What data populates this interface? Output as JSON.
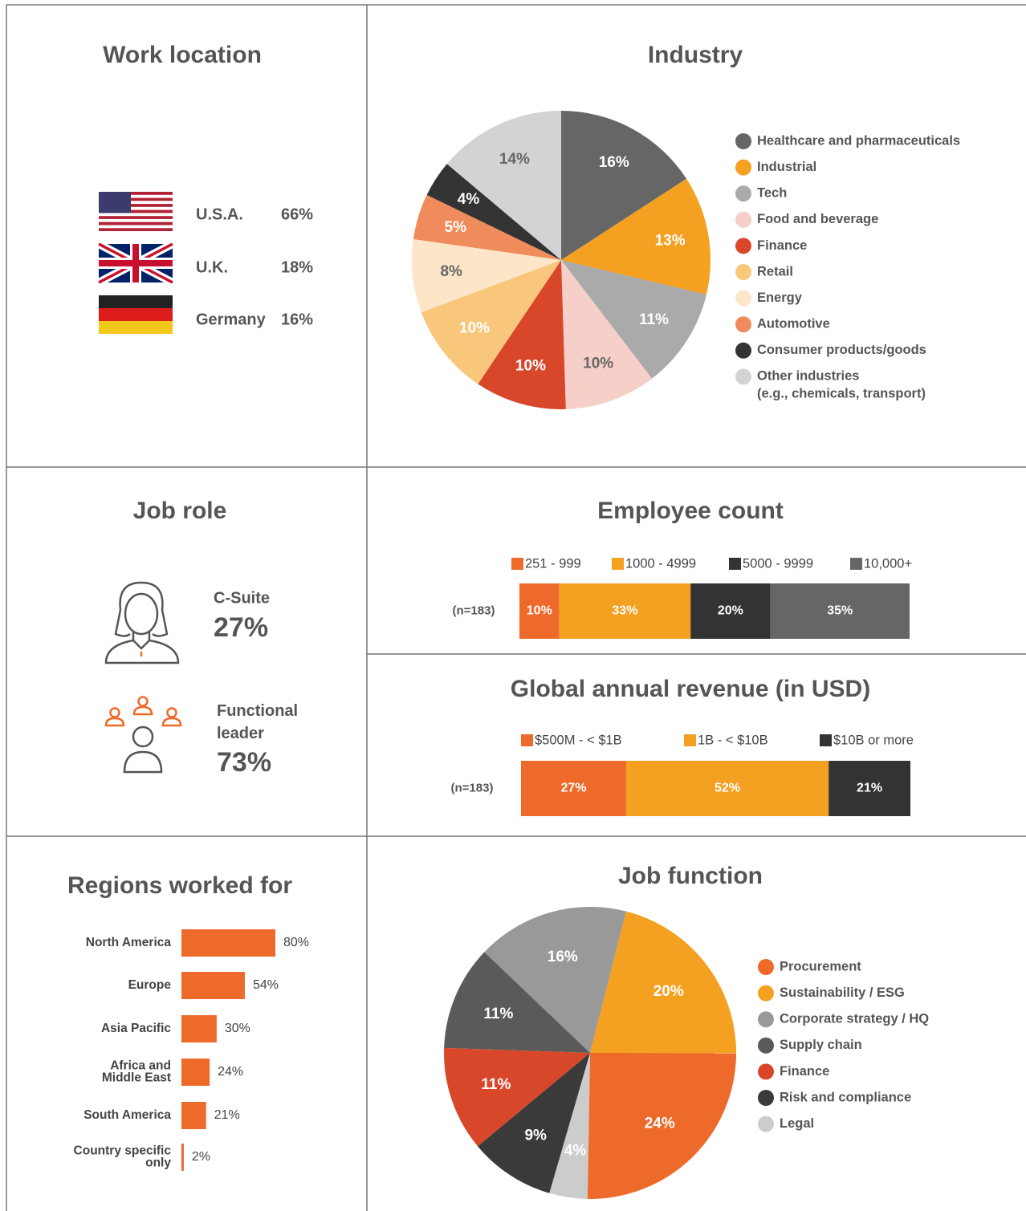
{
  "chart_data": [
    {
      "type": "stat",
      "title": "Work location",
      "categories": [
        "U.S.A.",
        "U.K.",
        "Germany"
      ],
      "values": [
        66,
        18,
        16
      ],
      "value_labels": [
        "66%",
        "18%",
        "16%"
      ]
    },
    {
      "type": "pie",
      "title": "Industry",
      "categories": [
        "Healthcare and pharmaceuticals",
        "Industrial",
        "Tech",
        "Food and beverage",
        "Finance",
        "Retail",
        "Energy",
        "Automotive",
        "Consumer products/goods",
        "Other industries\n(e.g., chemicals, transport)"
      ],
      "values": [
        16,
        13,
        11,
        10,
        10,
        10,
        8,
        5,
        4,
        14
      ],
      "value_labels": [
        "16%",
        "13%",
        "11%",
        "10%",
        "10%",
        "10%",
        "8%",
        "5%",
        "4%",
        "14%"
      ],
      "colors": [
        "#666666",
        "#f4a020",
        "#aaaaaa",
        "#f5cfc8",
        "#d9472b",
        "#f9c77b",
        "#fde5c8",
        "#f08c5c",
        "#333333",
        "#d3d3d3"
      ]
    },
    {
      "type": "stat",
      "title": "Job role",
      "categories": [
        "C-Suite",
        "Functional\nleader"
      ],
      "values": [
        27,
        73
      ],
      "value_labels": [
        "27%",
        "73%"
      ]
    },
    {
      "type": "stacked_bar",
      "title": "Employee count",
      "note": "(n=183)",
      "series": [
        {
          "name": "251 - 999",
          "color": "#ee6a2a",
          "values": [
            10
          ],
          "value_labels": [
            "10%"
          ]
        },
        {
          "name": "1000 - 4999",
          "color": "#f4a020",
          "values": [
            33
          ],
          "value_labels": [
            "33%"
          ]
        },
        {
          "name": "5000 - 9999",
          "color": "#333333",
          "values": [
            20
          ],
          "value_labels": [
            "20%"
          ]
        },
        {
          "name": "10,000+",
          "color": "#666666",
          "values": [
            35
          ],
          "value_labels": [
            "35%"
          ]
        }
      ]
    },
    {
      "type": "stacked_bar",
      "title": "Global annual revenue (in USD)",
      "note": "(n=183)",
      "series": [
        {
          "name": "$500M - < $1B",
          "color": "#ee6a2a",
          "values": [
            27
          ],
          "value_labels": [
            "27%"
          ]
        },
        {
          "name": "1B - < $10B",
          "color": "#f4a020",
          "values": [
            52
          ],
          "value_labels": [
            "52%"
          ]
        },
        {
          "name": "$10B or more",
          "color": "#333333",
          "values": [
            21
          ],
          "value_labels": [
            "21%"
          ]
        }
      ]
    },
    {
      "type": "hbar",
      "title": "Regions worked for",
      "categories": [
        "North America",
        "Europe",
        "Asia Pacific",
        "Africa and\nMiddle East",
        "South America",
        "Country specific\nonly"
      ],
      "values": [
        80,
        54,
        30,
        24,
        21,
        2
      ],
      "value_labels": [
        "80%",
        "54%",
        "30%",
        "24%",
        "21%",
        "2%"
      ],
      "color": "#ee6a2a"
    },
    {
      "type": "pie",
      "title": "Job function",
      "categories": [
        "Procurement",
        "Sustainability / ESG",
        "Corporate strategy / HQ",
        "Supply chain",
        "Finance",
        "Risk and compliance",
        "Legal"
      ],
      "values": [
        24,
        20,
        16,
        11,
        11,
        9,
        4
      ],
      "value_labels": [
        "24%",
        "20%",
        "16%",
        "11%",
        "11%",
        "9%",
        "4%"
      ],
      "colors": [
        "#ee6a2a",
        "#f4a020",
        "#999999",
        "#5a5a5a",
        "#d9472b",
        "#3a3a3a",
        "#cccccc"
      ]
    }
  ]
}
